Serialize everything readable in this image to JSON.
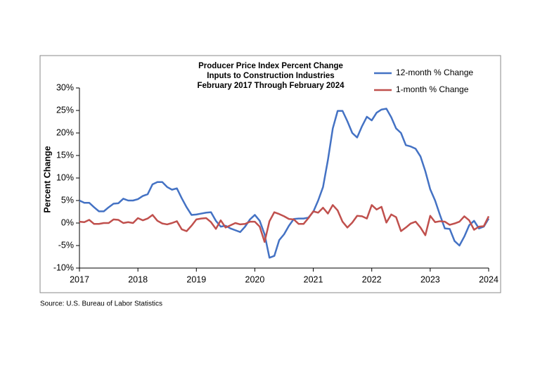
{
  "chart_data": {
    "type": "line",
    "title": [
      "Producer Price Index Percent Change",
      "Inputs to Construction Industries",
      "February 2017 Through February 2024"
    ],
    "y_label": "Percent Change",
    "source": "Source: U.S. Bureau of Labor Statistics",
    "categories": [
      "2017",
      null,
      null,
      null,
      null,
      null,
      null,
      null,
      null,
      null,
      null,
      null,
      "2018",
      null,
      null,
      null,
      null,
      null,
      null,
      null,
      null,
      null,
      null,
      null,
      "2019",
      null,
      null,
      null,
      null,
      null,
      null,
      null,
      null,
      null,
      null,
      null,
      "2020",
      null,
      null,
      null,
      null,
      null,
      null,
      null,
      null,
      null,
      null,
      null,
      "2021",
      null,
      null,
      null,
      null,
      null,
      null,
      null,
      null,
      null,
      null,
      null,
      "2022",
      null,
      null,
      null,
      null,
      null,
      null,
      null,
      null,
      null,
      null,
      null,
      "2023",
      null,
      null,
      null,
      null,
      null,
      null,
      null,
      null,
      null,
      null,
      null,
      "2024"
    ],
    "series": [
      {
        "name": "12-month % Change",
        "color": "#4472c4",
        "values": [
          5.0,
          4.5,
          4.5,
          3.5,
          2.6,
          2.6,
          3.5,
          4.3,
          4.4,
          5.4,
          5.0,
          5.0,
          5.3,
          6.0,
          6.4,
          8.6,
          9.1,
          9.1,
          8.0,
          7.4,
          7.7,
          5.5,
          3.5,
          1.8,
          1.9,
          2.1,
          2.3,
          2.4,
          0.5,
          -0.8,
          -0.6,
          -1.2,
          -1.6,
          -2.0,
          -0.8,
          0.8,
          1.8,
          0.5,
          -2.5,
          -7.7,
          -7.3,
          -3.8,
          -2.5,
          -0.6,
          0.9,
          1.0,
          1.0,
          1.2,
          2.5,
          5.0,
          8.0,
          14.0,
          21.0,
          24.9,
          24.9,
          22.6,
          20.0,
          19.0,
          21.5,
          23.6,
          22.8,
          24.5,
          25.2,
          25.4,
          23.5,
          21.0,
          20.0,
          17.3,
          17.0,
          16.5,
          14.8,
          11.5,
          7.5,
          5.0,
          1.8,
          -1.2,
          -1.3,
          -4.0,
          -5.0,
          -3.0,
          -0.5,
          0.5,
          -1.2,
          -0.8,
          1.0
        ]
      },
      {
        "name": "1-month % Change",
        "color": "#c0504d",
        "values": [
          0.3,
          0.2,
          0.7,
          -0.2,
          -0.2,
          0,
          0,
          0.8,
          0.7,
          0,
          0.2,
          0,
          1.1,
          0.6,
          1.0,
          1.8,
          0.5,
          -0.1,
          -0.3,
          0,
          0.4,
          -1.4,
          -1.8,
          -0.6,
          0.8,
          1.0,
          1.1,
          0.2,
          -1.3,
          0.6,
          -1.0,
          -0.5,
          0,
          -0.3,
          -0.2,
          0.3,
          0.3,
          -0.8,
          -4.2,
          0.4,
          2.4,
          2.0,
          1.5,
          0.9,
          0.8,
          -0.2,
          -0.2,
          1.1,
          2.6,
          2.3,
          3.4,
          2.1,
          4.0,
          2.8,
          0.3,
          -1.0,
          0.1,
          1.6,
          1.5,
          1.0,
          4.0,
          3.0,
          3.6,
          0.1,
          1.9,
          1.3,
          -1.8,
          -1.0,
          -0.1,
          0.3,
          -1.0,
          -2.7,
          1.6,
          0.2,
          0.4,
          0.3,
          -0.4,
          -0.1,
          0.3,
          1.5,
          0.6,
          -1.5,
          -0.8,
          -0.7,
          1.5
        ]
      }
    ],
    "ylim": [
      -10,
      30
    ],
    "yticks": [
      {
        "value": -10,
        "label": "-10%"
      },
      {
        "value": -5,
        "label": "-5%"
      },
      {
        "value": 0,
        "label": "0%"
      },
      {
        "value": 5,
        "label": "5%"
      },
      {
        "value": 10,
        "label": "10%"
      },
      {
        "value": 15,
        "label": "15%"
      },
      {
        "value": 20,
        "label": "20%"
      },
      {
        "value": 25,
        "label": "25%"
      },
      {
        "value": 30,
        "label": "30%"
      }
    ],
    "grid": false,
    "legend": "top-right"
  }
}
